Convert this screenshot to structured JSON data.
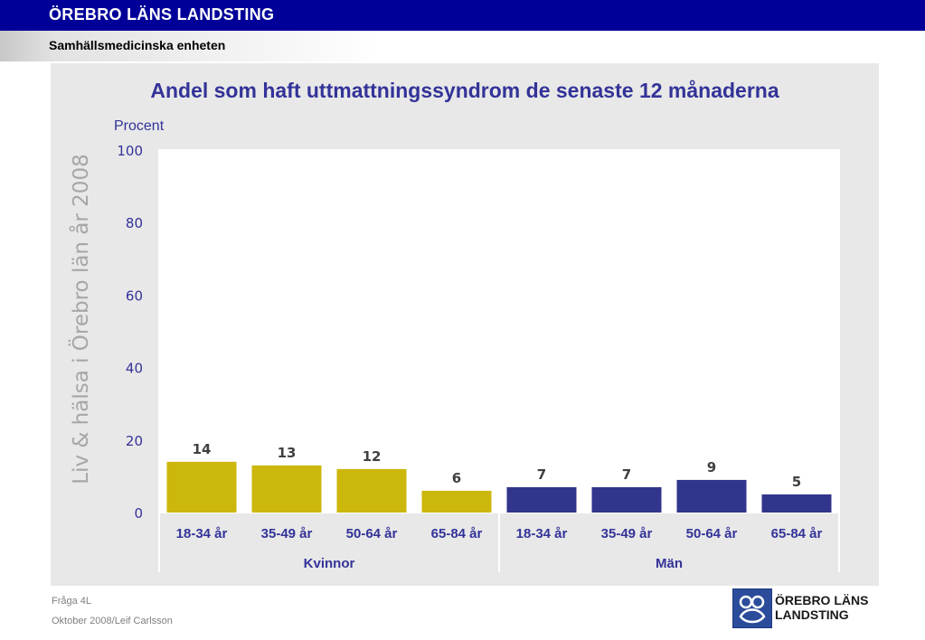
{
  "header": {
    "organization": "ÖREBRO LÄNS LANDSTING",
    "unit": "Samhällsmedicinska enheten"
  },
  "sidebar_text": "Liv & hälsa i Örebro län år 2008",
  "footer": {
    "question": "Fråga 4L",
    "author_date": "Oktober 2008/Leif Carlsson"
  },
  "logo": {
    "line1": "ÖREBRO LÄNS",
    "line2": "LANDSTING",
    "icon": "landsting-logo-icon"
  },
  "colors": {
    "women": "#ccb70c",
    "men": "#31358c",
    "title": "#333399",
    "header": "#000099"
  },
  "chart_data": {
    "type": "bar",
    "title": "Andel som haft uttmattningssyndrom de senaste 12 månaderna",
    "ylabel": "Procent",
    "ylim": [
      0,
      100
    ],
    "yticks": [
      "0",
      "20",
      "40",
      "60",
      "80",
      "100"
    ],
    "grid": false,
    "categories": [
      "18-34 år",
      "35-49 år",
      "50-64 år",
      "65-84 år",
      "18-34 år",
      "35-49 år",
      "50-64 år",
      "65-84 år"
    ],
    "groups": [
      {
        "name": "Kvinnor",
        "values": [
          14,
          13,
          12,
          6
        ]
      },
      {
        "name": "Män",
        "values": [
          7,
          7,
          9,
          5
        ]
      }
    ]
  }
}
